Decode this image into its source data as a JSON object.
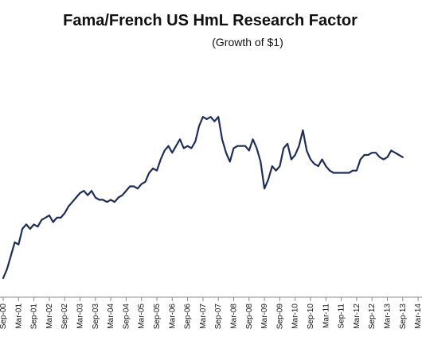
{
  "chart_data": {
    "type": "line",
    "title": "Fama/French US HmL Research Factor",
    "subtitle": "(Growth of $1)",
    "xlabel": "",
    "ylabel": "",
    "ylim": [
      0.9,
      2.0
    ],
    "grid": false,
    "legend": "none",
    "x_tick_labels": [
      "Sep-00",
      "Mar-01",
      "Sep-01",
      "Mar-02",
      "Sep-02",
      "Mar-03",
      "Sep-03",
      "Mar-04",
      "Sep-04",
      "Mar-05",
      "Sep-05",
      "Mar-06",
      "Sep-06",
      "Mar-07",
      "Sep-07",
      "Mar-08",
      "Sep-08",
      "Mar-09",
      "Sep-09",
      "Mar-10",
      "Sep-10",
      "Mar-11",
      "Sep-11",
      "Mar-12",
      "Sep-12",
      "Mar-13",
      "Sep-13",
      "Mar-14"
    ],
    "series": [
      {
        "color": "#1f2d5a",
        "points": [
          {
            "t": 0,
            "v": 0.9
          },
          {
            "t": 0.5,
            "v": 0.94
          },
          {
            "t": 1,
            "v": 1.0
          },
          {
            "t": 1.5,
            "v": 1.06
          },
          {
            "t": 2,
            "v": 1.05
          },
          {
            "t": 2.5,
            "v": 1.12
          },
          {
            "t": 3,
            "v": 1.14
          },
          {
            "t": 3.5,
            "v": 1.12
          },
          {
            "t": 4,
            "v": 1.14
          },
          {
            "t": 4.5,
            "v": 1.13
          },
          {
            "t": 5,
            "v": 1.16
          },
          {
            "t": 5.5,
            "v": 1.17
          },
          {
            "t": 6,
            "v": 1.18
          },
          {
            "t": 6.5,
            "v": 1.15
          },
          {
            "t": 7,
            "v": 1.17
          },
          {
            "t": 7.5,
            "v": 1.17
          },
          {
            "t": 8,
            "v": 1.19
          },
          {
            "t": 8.5,
            "v": 1.22
          },
          {
            "t": 9,
            "v": 1.24
          },
          {
            "t": 9.5,
            "v": 1.26
          },
          {
            "t": 10,
            "v": 1.28
          },
          {
            "t": 10.5,
            "v": 1.29
          },
          {
            "t": 11,
            "v": 1.27
          },
          {
            "t": 11.5,
            "v": 1.29
          },
          {
            "t": 12,
            "v": 1.26
          },
          {
            "t": 12.5,
            "v": 1.25
          },
          {
            "t": 13,
            "v": 1.25
          },
          {
            "t": 13.5,
            "v": 1.24
          },
          {
            "t": 14,
            "v": 1.25
          },
          {
            "t": 14.5,
            "v": 1.24
          },
          {
            "t": 15,
            "v": 1.26
          },
          {
            "t": 15.5,
            "v": 1.27
          },
          {
            "t": 16,
            "v": 1.29
          },
          {
            "t": 16.5,
            "v": 1.31
          },
          {
            "t": 17,
            "v": 1.31
          },
          {
            "t": 17.5,
            "v": 1.3
          },
          {
            "t": 18,
            "v": 1.32
          },
          {
            "t": 18.5,
            "v": 1.33
          },
          {
            "t": 19,
            "v": 1.37
          },
          {
            "t": 19.5,
            "v": 1.39
          },
          {
            "t": 20,
            "v": 1.38
          },
          {
            "t": 20.5,
            "v": 1.43
          },
          {
            "t": 21,
            "v": 1.47
          },
          {
            "t": 21.5,
            "v": 1.49
          },
          {
            "t": 22,
            "v": 1.46
          },
          {
            "t": 22.5,
            "v": 1.49
          },
          {
            "t": 23,
            "v": 1.52
          },
          {
            "t": 23.5,
            "v": 1.48
          },
          {
            "t": 24,
            "v": 1.49
          },
          {
            "t": 24.5,
            "v": 1.48
          },
          {
            "t": 25,
            "v": 1.51
          },
          {
            "t": 25.5,
            "v": 1.58
          },
          {
            "t": 26,
            "v": 1.62
          },
          {
            "t": 26.5,
            "v": 1.61
          },
          {
            "t": 27,
            "v": 1.62
          },
          {
            "t": 27.5,
            "v": 1.6
          },
          {
            "t": 28,
            "v": 1.62
          },
          {
            "t": 28.5,
            "v": 1.52
          },
          {
            "t": 29,
            "v": 1.46
          },
          {
            "t": 29.5,
            "v": 1.42
          },
          {
            "t": 30,
            "v": 1.48
          },
          {
            "t": 30.5,
            "v": 1.49
          },
          {
            "t": 31,
            "v": 1.49
          },
          {
            "t": 31.5,
            "v": 1.49
          },
          {
            "t": 32,
            "v": 1.47
          },
          {
            "t": 32.5,
            "v": 1.52
          },
          {
            "t": 33,
            "v": 1.48
          },
          {
            "t": 33.5,
            "v": 1.42
          },
          {
            "t": 34,
            "v": 1.3
          },
          {
            "t": 34.5,
            "v": 1.34
          },
          {
            "t": 35,
            "v": 1.4
          },
          {
            "t": 35.5,
            "v": 1.38
          },
          {
            "t": 36,
            "v": 1.4
          },
          {
            "t": 36.5,
            "v": 1.48
          },
          {
            "t": 37,
            "v": 1.5
          },
          {
            "t": 37.5,
            "v": 1.43
          },
          {
            "t": 38,
            "v": 1.45
          },
          {
            "t": 38.5,
            "v": 1.49
          },
          {
            "t": 39,
            "v": 1.56
          },
          {
            "t": 39.5,
            "v": 1.47
          },
          {
            "t": 40,
            "v": 1.43
          },
          {
            "t": 40.5,
            "v": 1.41
          },
          {
            "t": 41,
            "v": 1.4
          },
          {
            "t": 41.5,
            "v": 1.43
          },
          {
            "t": 42,
            "v": 1.4
          },
          {
            "t": 42.5,
            "v": 1.38
          },
          {
            "t": 43,
            "v": 1.37
          },
          {
            "t": 43.5,
            "v": 1.37
          },
          {
            "t": 44,
            "v": 1.37
          },
          {
            "t": 44.5,
            "v": 1.37
          },
          {
            "t": 45,
            "v": 1.37
          },
          {
            "t": 45.5,
            "v": 1.38
          },
          {
            "t": 46,
            "v": 1.38
          },
          {
            "t": 46.5,
            "v": 1.43
          },
          {
            "t": 47,
            "v": 1.45
          },
          {
            "t": 47.5,
            "v": 1.45
          },
          {
            "t": 48,
            "v": 1.46
          },
          {
            "t": 48.5,
            "v": 1.46
          },
          {
            "t": 49,
            "v": 1.44
          },
          {
            "t": 49.5,
            "v": 1.43
          },
          {
            "t": 50,
            "v": 1.44
          },
          {
            "t": 50.5,
            "v": 1.47
          },
          {
            "t": 51,
            "v": 1.46
          },
          {
            "t": 51.5,
            "v": 1.45
          },
          {
            "t": 52,
            "v": 1.44
          }
        ]
      }
    ]
  }
}
